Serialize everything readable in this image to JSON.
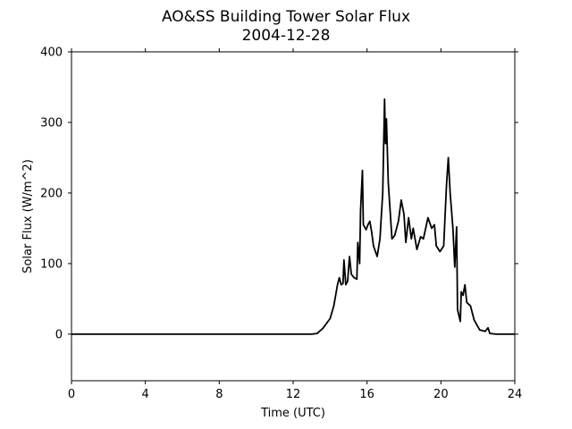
{
  "chart_data": {
    "type": "line",
    "title": "AO&SS Building Tower Solar Flux",
    "subtitle": "2004-12-28",
    "x_label": "Time (UTC)",
    "y_label": "Solar Flux (W/m^2)",
    "color": "#000000",
    "x": [
      0,
      13.0,
      13.3,
      13.6,
      14.0,
      14.2,
      14.4,
      14.5,
      14.6,
      14.7,
      14.75,
      14.85,
      14.95,
      15.05,
      15.15,
      15.3,
      15.45,
      15.5,
      15.6,
      15.65,
      15.75,
      15.8,
      15.95,
      16.05,
      16.15,
      16.25,
      16.35,
      16.55,
      16.7,
      16.85,
      16.95,
      17.0,
      17.05,
      17.15,
      17.25,
      17.35,
      17.5,
      17.7,
      17.85,
      18.0,
      18.1,
      18.25,
      18.4,
      18.5,
      18.7,
      18.9,
      19.05,
      19.3,
      19.5,
      19.65,
      19.75,
      19.95,
      20.15,
      20.3,
      20.4,
      20.5,
      20.65,
      20.75,
      20.85,
      20.9,
      21.05,
      21.1,
      21.2,
      21.3,
      21.4,
      21.6,
      21.8,
      22.1,
      22.4,
      22.55,
      22.65,
      23.0,
      24
    ],
    "values": [
      0,
      0,
      1,
      8,
      22,
      40,
      70,
      80,
      70,
      72,
      105,
      70,
      75,
      110,
      85,
      80,
      78,
      130,
      100,
      175,
      232,
      155,
      148,
      155,
      160,
      145,
      125,
      110,
      135,
      200,
      333,
      270,
      305,
      215,
      175,
      135,
      140,
      160,
      190,
      170,
      130,
      165,
      135,
      150,
      120,
      138,
      135,
      165,
      150,
      155,
      125,
      117,
      125,
      210,
      250,
      200,
      150,
      95,
      152,
      35,
      18,
      60,
      55,
      70,
      45,
      40,
      20,
      6,
      4,
      9,
      1,
      0,
      0
    ],
    "xlim": [
      0,
      24
    ],
    "xticks": [
      0,
      4,
      8,
      12,
      16,
      20,
      24
    ],
    "ylim": [
      -66,
      400
    ],
    "yticks": [
      0,
      100,
      200,
      300,
      400
    ]
  }
}
